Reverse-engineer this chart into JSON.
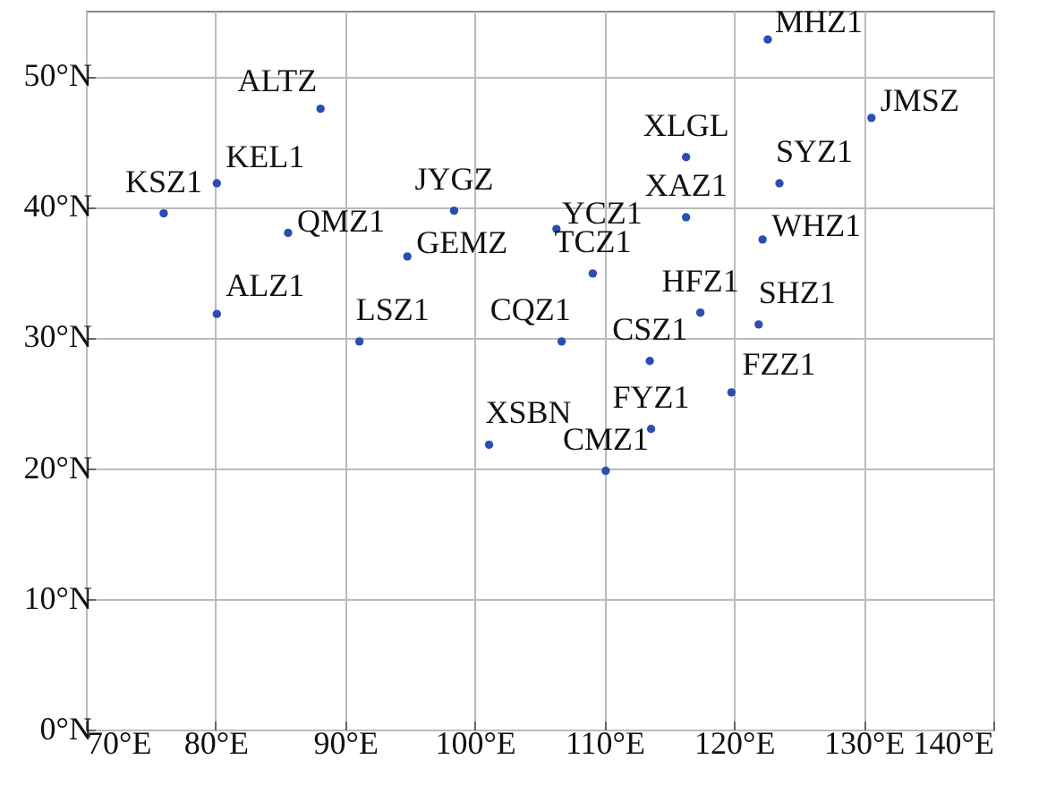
{
  "chart_data": {
    "type": "scatter",
    "marker": "circle",
    "grid": true,
    "xlim": [
      70,
      140
    ],
    "ylim": [
      0,
      55
    ],
    "xticks": [
      {
        "value": 70,
        "label": "70°E"
      },
      {
        "value": 80,
        "label": "80°E"
      },
      {
        "value": 90,
        "label": "90°E"
      },
      {
        "value": 100,
        "label": "100°E"
      },
      {
        "value": 110,
        "label": "110°E"
      },
      {
        "value": 120,
        "label": "120°E"
      },
      {
        "value": 130,
        "label": "130°E"
      },
      {
        "value": 140,
        "label": "140°E"
      }
    ],
    "yticks": [
      {
        "value": 0,
        "label": "0°N"
      },
      {
        "value": 10,
        "label": "10°N"
      },
      {
        "value": 20,
        "label": "20°N"
      },
      {
        "value": 30,
        "label": "30°N"
      },
      {
        "value": 40,
        "label": "40°N"
      },
      {
        "value": 50,
        "label": "50°N"
      }
    ],
    "series": [
      {
        "color": "#2a4fb0",
        "x": [
          76.0,
          80.1,
          88.1,
          85.6,
          98.4,
          94.8,
          80.1,
          91.1,
          101.1,
          122.6,
          130.6,
          116.3,
          123.5,
          116.3,
          106.3,
          122.2,
          109.1,
          117.4,
          121.9,
          106.7,
          113.5,
          119.8,
          113.6,
          110.1
        ],
        "values": [
          39.5,
          41.8,
          47.5,
          38.0,
          39.7,
          36.2,
          31.8,
          29.7,
          21.8,
          52.8,
          46.8,
          43.8,
          41.8,
          39.2,
          38.3,
          37.5,
          34.9,
          31.9,
          31.0,
          29.7,
          28.2,
          25.8,
          23.0,
          19.8
        ]
      }
    ],
    "annotations": [
      {
        "text": "KSZ1",
        "x": 76.0,
        "y": 39.5
      },
      {
        "text": "KEL1",
        "x": 80.1,
        "y": 41.8
      },
      {
        "text": "ALTZ",
        "x": 88.1,
        "y": 47.5
      },
      {
        "text": "QMZ1",
        "x": 85.6,
        "y": 38.0
      },
      {
        "text": "JYGZ",
        "x": 98.4,
        "y": 39.7
      },
      {
        "text": "GEMZ",
        "x": 94.8,
        "y": 36.2
      },
      {
        "text": "ALZ1",
        "x": 80.1,
        "y": 31.8
      },
      {
        "text": "LSZ1",
        "x": 91.1,
        "y": 29.7
      },
      {
        "text": "XSBN",
        "x": 101.1,
        "y": 21.8
      },
      {
        "text": "MHZ1",
        "x": 122.6,
        "y": 52.8
      },
      {
        "text": "JMSZ",
        "x": 130.6,
        "y": 46.8
      },
      {
        "text": "XLGL",
        "x": 116.3,
        "y": 43.8
      },
      {
        "text": "SYZ1",
        "x": 123.5,
        "y": 41.8
      },
      {
        "text": "XAZ1",
        "x": 116.3,
        "y": 39.2
      },
      {
        "text": "YCZ1",
        "x": 106.3,
        "y": 38.3
      },
      {
        "text": "WHZ1",
        "x": 122.2,
        "y": 37.5
      },
      {
        "text": "TCZ1",
        "x": 109.1,
        "y": 34.9
      },
      {
        "text": "HFZ1",
        "x": 117.4,
        "y": 31.9
      },
      {
        "text": "SHZ1",
        "x": 121.9,
        "y": 31.0
      },
      {
        "text": "CQZ1",
        "x": 106.7,
        "y": 29.7
      },
      {
        "text": "CSZ1",
        "x": 113.5,
        "y": 28.2
      },
      {
        "text": "FZZ1",
        "x": 119.8,
        "y": 25.8
      },
      {
        "text": "FYZ1",
        "x": 113.6,
        "y": 23.0
      },
      {
        "text": "CMZ1",
        "x": 110.1,
        "y": 19.8
      }
    ]
  }
}
